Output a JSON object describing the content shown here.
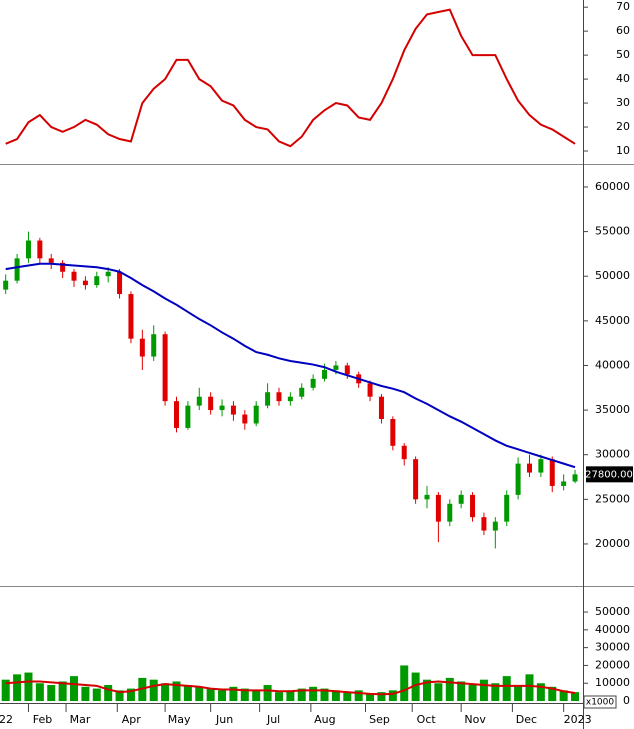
{
  "chart_data": [
    {
      "type": "line",
      "x": [
        0,
        1,
        2,
        3,
        4,
        5,
        6,
        7,
        8,
        9,
        10,
        11,
        12,
        13,
        14,
        15,
        16,
        17,
        18,
        19,
        20,
        21,
        22,
        23,
        24,
        25,
        26,
        27,
        28,
        29,
        30,
        31,
        32,
        33,
        34,
        35,
        36,
        37,
        38,
        39,
        40,
        41,
        42,
        43,
        44,
        45,
        46,
        47,
        48,
        49,
        50
      ],
      "xlim": [
        -0.5,
        50.7
      ],
      "series": [
        {
          "color": "#d40000",
          "values": [
            13,
            15,
            22,
            25,
            20,
            18,
            20,
            23,
            21,
            17,
            15,
            14,
            30,
            36,
            40,
            48,
            48,
            40,
            37,
            31,
            29,
            23,
            20,
            19,
            14,
            12,
            16,
            23,
            27,
            30,
            29,
            24,
            23,
            30,
            40,
            52,
            61,
            67,
            68,
            69,
            58,
            50,
            50,
            50,
            40,
            31,
            25,
            21,
            19,
            16,
            13
          ]
        }
      ],
      "ylim": [
        5,
        73
      ],
      "yticks": [
        10,
        20,
        30,
        40,
        50,
        60,
        70
      ]
    },
    {
      "type": "candlestick",
      "x": [
        0,
        1,
        2,
        3,
        4,
        5,
        6,
        7,
        8,
        9,
        10,
        11,
        12,
        13,
        14,
        15,
        16,
        17,
        18,
        19,
        20,
        21,
        22,
        23,
        24,
        25,
        26,
        27,
        28,
        29,
        30,
        31,
        32,
        33,
        34,
        35,
        36,
        37,
        38,
        39,
        40,
        41,
        42,
        43,
        44,
        45,
        46,
        47,
        48,
        49,
        50
      ],
      "xlim": [
        -0.5,
        50.7
      ],
      "open": [
        48500,
        49500,
        52000,
        54000,
        52000,
        51500,
        50500,
        49500,
        49000,
        50000,
        50500,
        48000,
        43000,
        41000,
        43500,
        36000,
        33000,
        35500,
        36500,
        35000,
        35500,
        34500,
        33500,
        35500,
        37000,
        36000,
        36500,
        37500,
        38500,
        39500,
        40000,
        39000,
        38000,
        36500,
        34000,
        31000,
        29500,
        25000,
        25500,
        22500,
        24500,
        25500,
        23000,
        21500,
        22500,
        25500,
        29000,
        28000,
        29500,
        26500,
        27000
      ],
      "high": [
        50200,
        52500,
        55000,
        54300,
        52500,
        51800,
        50800,
        50000,
        50500,
        51000,
        50800,
        48300,
        44000,
        44500,
        43800,
        36500,
        36000,
        37500,
        37000,
        36200,
        36000,
        35000,
        36000,
        38000,
        37500,
        37000,
        38000,
        39000,
        40200,
        40500,
        40300,
        39300,
        38300,
        36800,
        34300,
        31300,
        29800,
        26500,
        25800,
        25000,
        26000,
        25800,
        23500,
        23000,
        26000,
        29700,
        30000,
        30000,
        29800,
        27800,
        28300
      ],
      "low": [
        48000,
        49200,
        51500,
        51500,
        50800,
        49800,
        48800,
        48500,
        48700,
        49300,
        47500,
        42500,
        39500,
        40500,
        35500,
        32500,
        32800,
        35000,
        34500,
        34300,
        33800,
        32800,
        33200,
        35200,
        35500,
        35500,
        36200,
        37200,
        38200,
        39000,
        38500,
        37500,
        36000,
        33500,
        30500,
        28800,
        24500,
        24000,
        20200,
        22000,
        24000,
        22500,
        21000,
        19500,
        22000,
        25000,
        27500,
        27500,
        25800,
        26000,
        26800
      ],
      "close": [
        49500,
        52000,
        54000,
        52000,
        51500,
        50500,
        49500,
        49000,
        50000,
        50500,
        48000,
        43000,
        41000,
        43500,
        36000,
        33000,
        35500,
        36500,
        35000,
        35500,
        34500,
        33500,
        35500,
        37000,
        36000,
        36500,
        37500,
        38500,
        39500,
        40000,
        39000,
        38000,
        36500,
        34000,
        31000,
        29500,
        25000,
        25500,
        22500,
        24500,
        25500,
        23000,
        21500,
        22500,
        25500,
        29000,
        28000,
        29500,
        26500,
        27000,
        27800
      ],
      "up_color": "#009900",
      "down_color": "#e00000",
      "series": [
        {
          "color": "#0000c0",
          "values": [
            50800,
            51000,
            51200,
            51400,
            51400,
            51300,
            51200,
            51100,
            51000,
            50800,
            50500,
            49800,
            49000,
            48300,
            47500,
            46800,
            46000,
            45200,
            44500,
            43700,
            43000,
            42200,
            41500,
            41200,
            40800,
            40500,
            40300,
            40100,
            39800,
            39300,
            38900,
            38500,
            38100,
            37700,
            37400,
            37000,
            36300,
            35700,
            35000,
            34300,
            33700,
            33000,
            32300,
            31600,
            31000,
            30600,
            30200,
            29800,
            29400,
            29000,
            28600
          ]
        }
      ],
      "last_price": {
        "value": 27800,
        "label": "27800.00"
      },
      "ylim": [
        15400,
        62350
      ],
      "yticks": [
        20000,
        25000,
        30000,
        35000,
        40000,
        45000,
        50000,
        55000,
        60000
      ]
    },
    {
      "type": "bar",
      "x": [
        0,
        1,
        2,
        3,
        4,
        5,
        6,
        7,
        8,
        9,
        10,
        11,
        12,
        13,
        14,
        15,
        16,
        17,
        18,
        19,
        20,
        21,
        22,
        23,
        24,
        25,
        26,
        27,
        28,
        29,
        30,
        31,
        32,
        33,
        34,
        35,
        36,
        37,
        38,
        39,
        40,
        41,
        42,
        43,
        44,
        45,
        46,
        47,
        48,
        49,
        50
      ],
      "xlim": [
        -0.5,
        50.7
      ],
      "values": [
        12000,
        15000,
        16000,
        10000,
        9000,
        11000,
        14000,
        8000,
        7000,
        9000,
        6000,
        7000,
        13000,
        12000,
        10000,
        11000,
        9000,
        8000,
        7000,
        6000,
        8000,
        7000,
        6000,
        9000,
        5000,
        6000,
        7000,
        8000,
        7000,
        6000,
        5000,
        6000,
        4000,
        5000,
        6000,
        20000,
        16000,
        12000,
        10000,
        13000,
        11000,
        9000,
        12000,
        10000,
        14000,
        9000,
        15000,
        10000,
        8000,
        6000,
        5000
      ],
      "color": "#009900",
      "series": [
        {
          "color": "#d40000",
          "values": [
            10000,
            10500,
            11000,
            11000,
            10500,
            10000,
            9500,
            9000,
            8500,
            6500,
            5000,
            5500,
            7000,
            8500,
            9500,
            9000,
            8500,
            8000,
            7000,
            6500,
            6500,
            6000,
            6000,
            6000,
            5500,
            5500,
            6000,
            6000,
            6000,
            5500,
            5000,
            4500,
            4000,
            3800,
            4000,
            6000,
            9000,
            10500,
            11000,
            10500,
            10000,
            9500,
            9000,
            8500,
            8500,
            8500,
            8500,
            8000,
            7000,
            5500,
            4500
          ]
        }
      ],
      "ylim": [
        -1100,
        63500
      ],
      "yticks": [
        0,
        10000,
        20000,
        30000,
        40000,
        50000
      ],
      "unit_label": "x1000",
      "xticks": [
        {
          "value": -1.2,
          "label": "22"
        },
        {
          "value": 2,
          "label": "Feb"
        },
        {
          "value": 5.3,
          "label": "Mar"
        },
        {
          "value": 9.8,
          "label": "Apr"
        },
        {
          "value": 14,
          "label": "May"
        },
        {
          "value": 18,
          "label": "Jun"
        },
        {
          "value": 22.3,
          "label": "Jul"
        },
        {
          "value": 26.8,
          "label": "Aug"
        },
        {
          "value": 31.6,
          "label": "Sep"
        },
        {
          "value": 35.7,
          "label": "Oct"
        },
        {
          "value": 40,
          "label": "Nov"
        },
        {
          "value": 44.5,
          "label": "Dec"
        },
        {
          "value": 49,
          "label": "2023"
        }
      ]
    }
  ]
}
